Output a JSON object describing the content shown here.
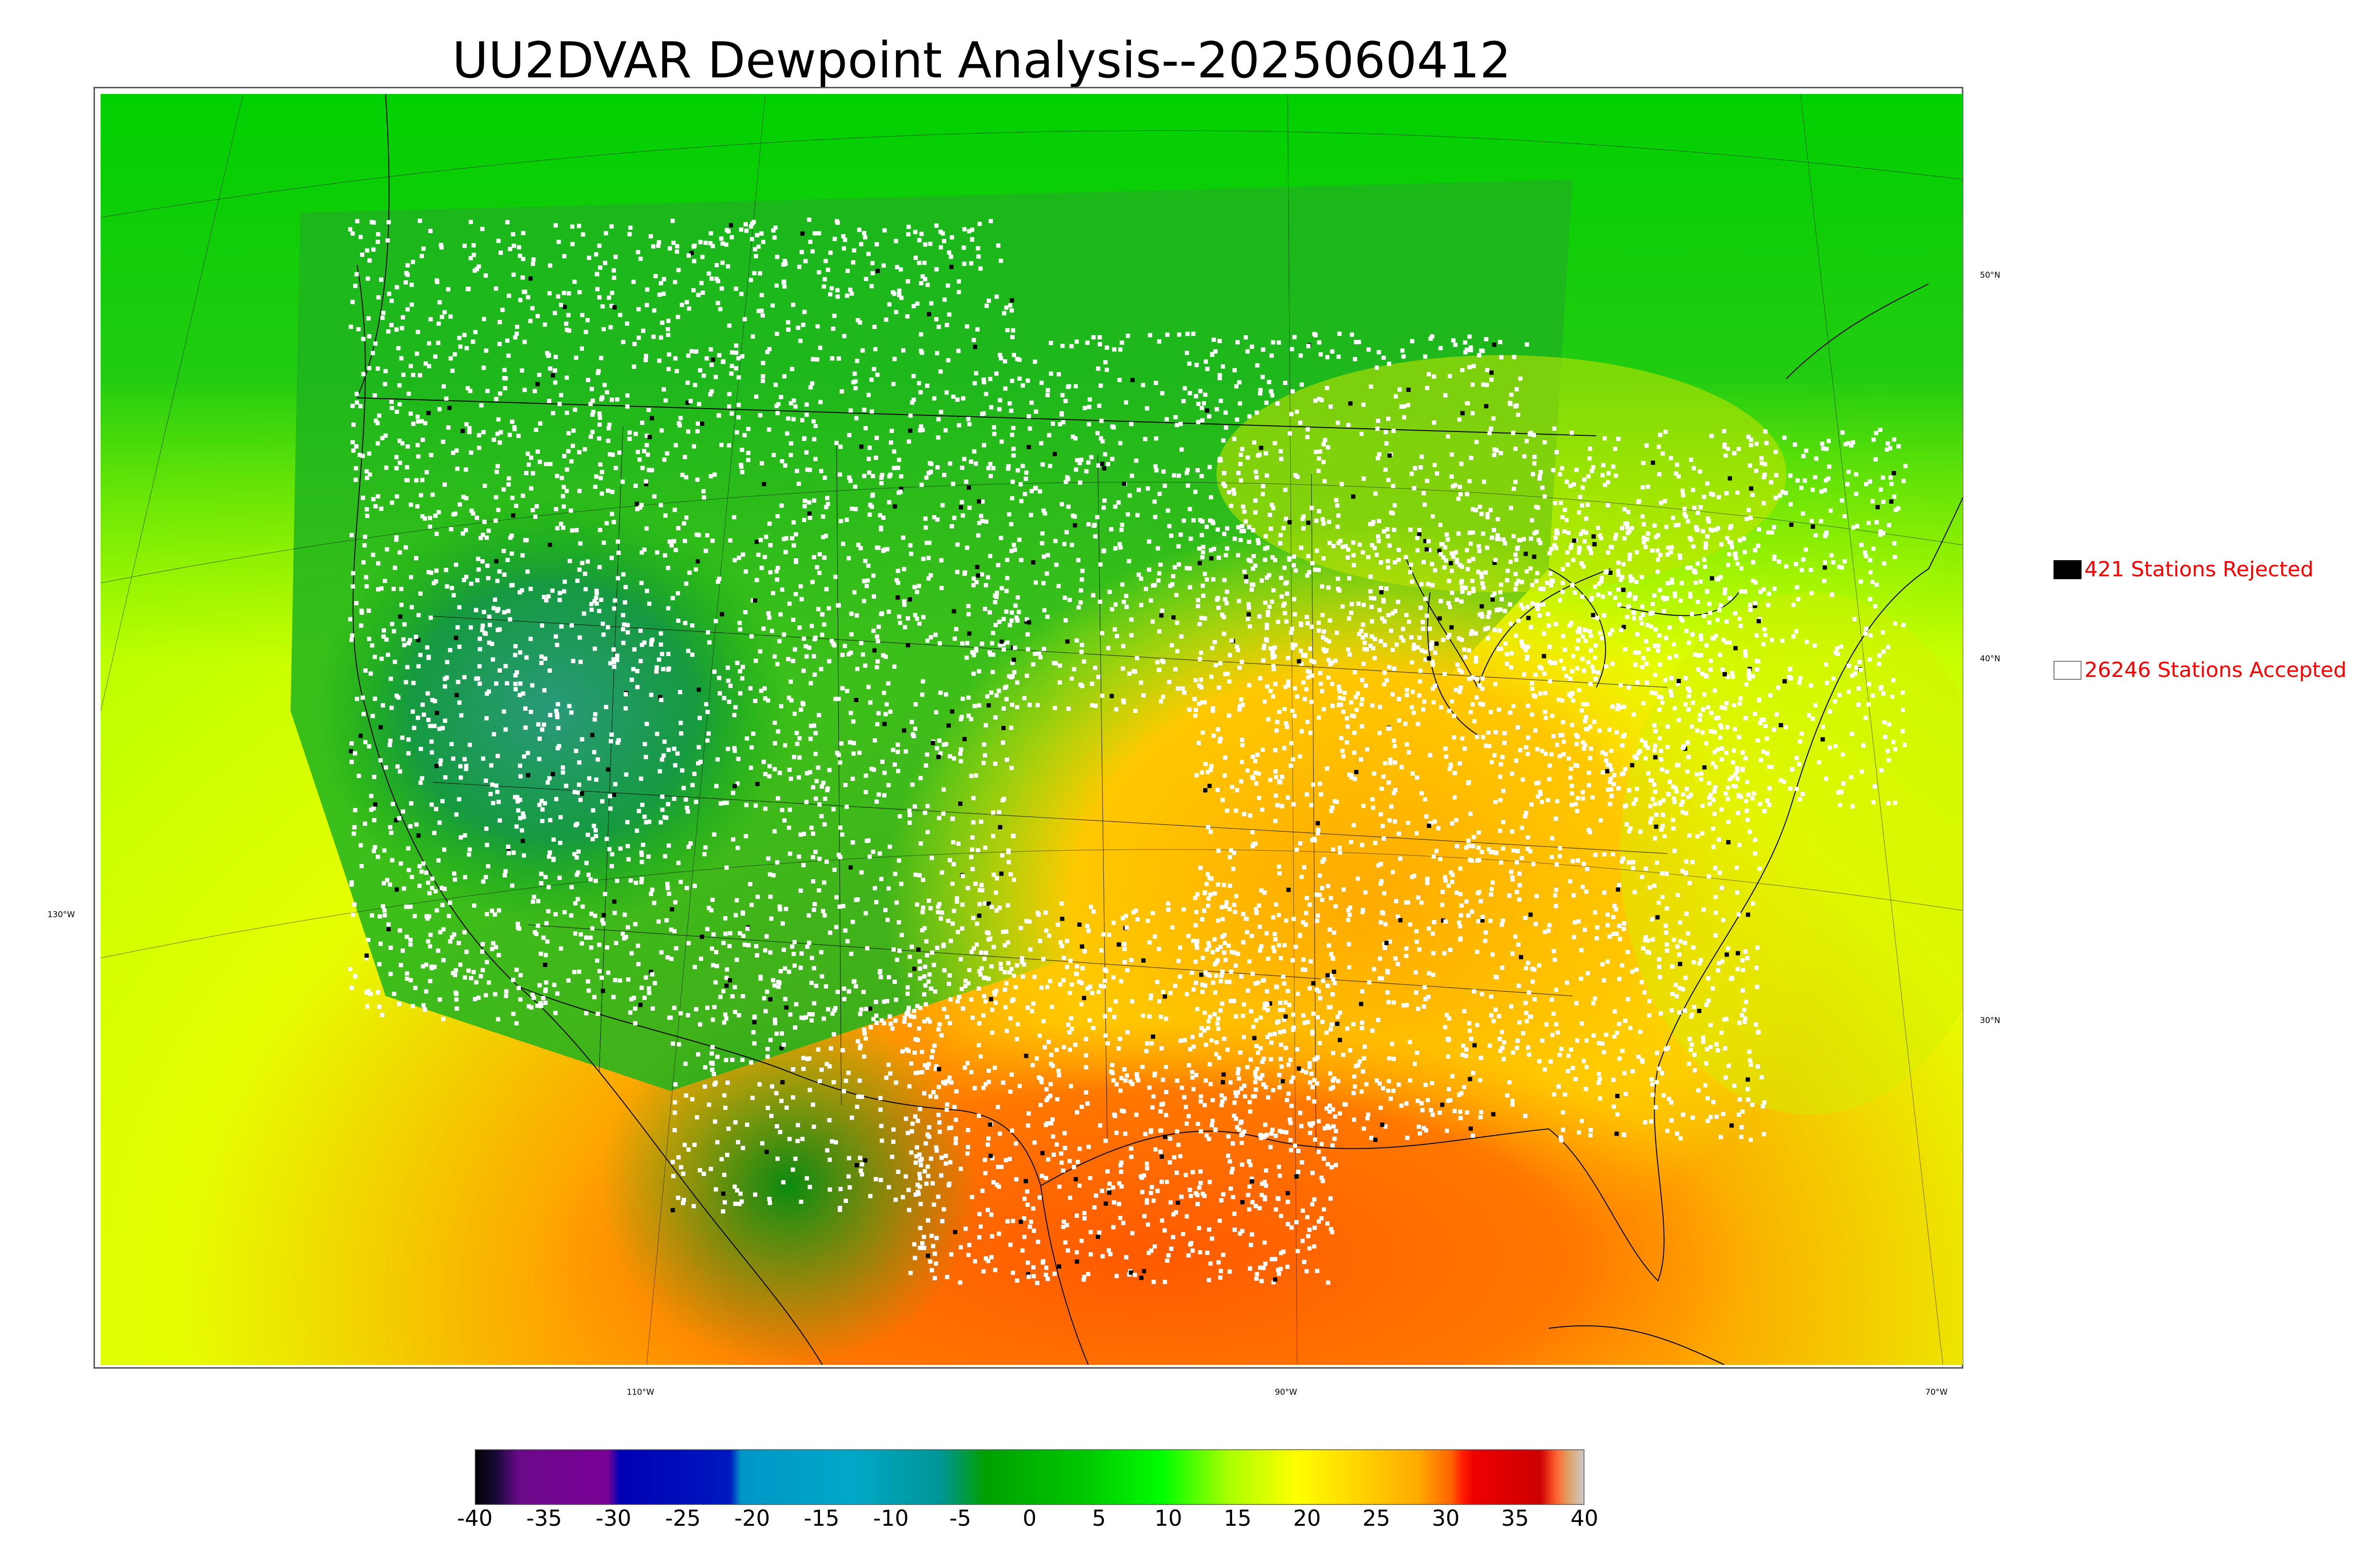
{
  "title": "UU2DVAR Dewpoint Analysis--2025060412",
  "map": {
    "lat_labels": [
      "50°N",
      "40°N",
      "30°N"
    ],
    "lon_labels": [
      "130°W",
      "110°W",
      "90°W",
      "70°W"
    ]
  },
  "legend": {
    "rejected_label": "421 Stations Rejected",
    "accepted_label": "26246 Stations Accepted",
    "rejected_color": "#000000",
    "accepted_color": "#ffffff",
    "text_color": "#ff0000"
  },
  "colorbar": {
    "ticks": [
      "-40",
      "-35",
      "-30",
      "-25",
      "-20",
      "-15",
      "-10",
      "-5",
      "0",
      "5",
      "10",
      "15",
      "20",
      "25",
      "30",
      "35",
      "40"
    ],
    "colors": [
      "#000000",
      "#1a0a3a",
      "#6a0a8a",
      "#7a0096",
      "#0000b4",
      "#0018c0",
      "#0096c8",
      "#00a8c8",
      "#009696",
      "#00a000",
      "#00c800",
      "#00ff00",
      "#aaff00",
      "#ffff00",
      "#ffd200",
      "#ffaa00",
      "#ff6400",
      "#ff1e00",
      "#ee0000",
      "#cc0000",
      "#ff6432",
      "#e0a060",
      "#cccccc"
    ]
  }
}
